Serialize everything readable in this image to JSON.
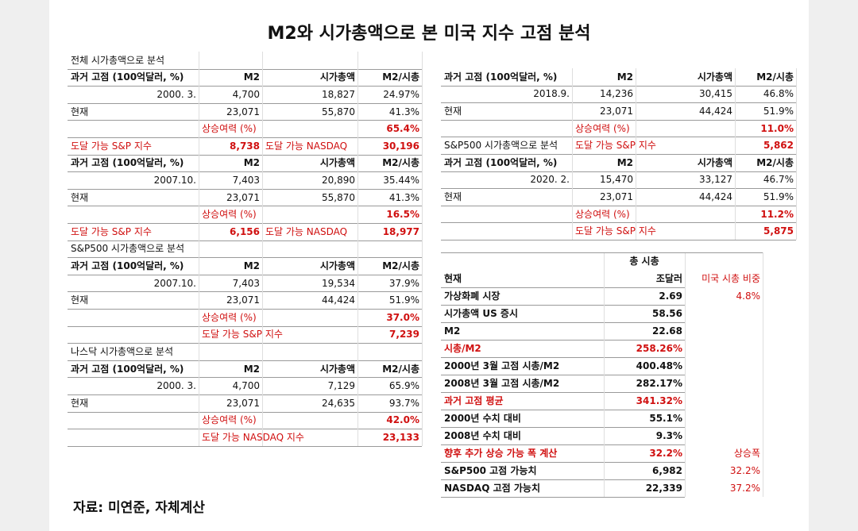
{
  "title": "M2와 시가총액으로 본 미국 지수 고점 분석",
  "source": "자료: 미연준, 자체계산",
  "left": [
    {
      "heading": "전체 시가총액으로 분석",
      "header": [
        "과거 고점 (100억달러, %)",
        "M2",
        "시가총액",
        "M2/시총"
      ],
      "rows": [
        [
          "2000. 3.",
          "4,700",
          "18,827",
          "24.97%"
        ],
        [
          "현재",
          "23,071",
          "55,870",
          "41.3%"
        ],
        [
          null,
          "상승여력 (%)",
          null,
          "65.4%"
        ],
        [
          "도달 가능 S&P 지수",
          "8,738",
          "도달 가능 NASDAQ",
          "30,196"
        ]
      ]
    },
    {
      "header": [
        "과거 고점 (100억달러, %)",
        "M2",
        "시가총액",
        "M2/시총"
      ],
      "rows": [
        [
          "2007.10.",
          "7,403",
          "20,890",
          "35.44%"
        ],
        [
          "현재",
          "23,071",
          "55,870",
          "41.3%"
        ],
        [
          null,
          "상승여력 (%)",
          null,
          "16.5%"
        ],
        [
          "도달 가능 S&P 지수",
          "6,156",
          "도달 가능 NASDAQ",
          "18,977"
        ]
      ]
    },
    {
      "heading": "S&P500 시가총액으로 분석",
      "header": [
        "과거 고점 (100억달러, %)",
        "M2",
        "시가총액",
        "M2/시총"
      ],
      "rows": [
        [
          "2007.10.",
          "7,403",
          "19,534",
          "37.9%"
        ],
        [
          "현재",
          "23,071",
          "44,424",
          "51.9%"
        ],
        [
          null,
          "상승여력 (%)",
          null,
          "37.0%"
        ],
        [
          null,
          "도달 가능 S&P 지수",
          null,
          "7,239"
        ]
      ]
    },
    {
      "heading": "나스닥 시가총액으로 분석",
      "header": [
        "과거 고점 (100억달러, %)",
        "M2",
        "시가총액",
        "M2/시총"
      ],
      "rows": [
        [
          "2000. 3.",
          "4,700",
          "7,129",
          "65.9%"
        ],
        [
          "현재",
          "23,071",
          "24,635",
          "93.7%"
        ],
        [
          null,
          "상승여력 (%)",
          null,
          "42.0%"
        ],
        [
          null,
          "도달 가능 NASDAQ 지수",
          null,
          "23,133"
        ]
      ]
    }
  ],
  "right": [
    {
      "header": [
        "과거 고점 (100억달러, %)",
        "M2",
        "시가총액",
        "M2/시총"
      ],
      "rows": [
        [
          "2018.9.",
          "14,236",
          "30,415",
          "46.8%"
        ],
        [
          "현재",
          "23,071",
          "44,424",
          "51.9%"
        ],
        [
          null,
          "상승여력 (%)",
          null,
          "11.0%"
        ],
        [
          "S&P500 시가총액으로 분석",
          "도달 가능 S&P 지수",
          null,
          "5,862"
        ]
      ]
    },
    {
      "header": [
        "과거 고점 (100억달러, %)",
        "M2",
        "시가총액",
        "M2/시총"
      ],
      "rows": [
        [
          "2020. 2.",
          "15,470",
          "33,127",
          "46.7%"
        ],
        [
          "현재",
          "23,071",
          "44,424",
          "51.9%"
        ],
        [
          null,
          "상승여력 (%)",
          null,
          "11.2%"
        ],
        [
          null,
          "도달 가능 S&P 지수",
          null,
          "5,875"
        ]
      ]
    }
  ],
  "summary": {
    "rows": [
      [
        null,
        "총 시총",
        null
      ],
      [
        "현재",
        "조달러",
        "미국 시총 비중"
      ],
      [
        "가상화폐 시장",
        "2.69",
        "4.8%"
      ],
      [
        "시가총액 US 증시",
        "58.56",
        null
      ],
      [
        "M2",
        "22.68",
        null
      ],
      [
        "시총/M2",
        "258.26%",
        null
      ],
      [
        "2000년 3월 고점 시총/M2",
        "400.48%",
        null
      ],
      [
        "2008년 3월 고점 시총/M2",
        "282.17%",
        null
      ],
      [
        "과거 고점 평균",
        "341.32%",
        null
      ],
      [
        "2000년 수치 대비",
        "55.1%",
        null
      ],
      [
        "2008년 수치 대비",
        "9.3%",
        null
      ],
      [
        "향후 추가 상승 가능 폭 계산",
        "32.2%",
        "상승폭"
      ],
      [
        "S&P500 고점 가능치",
        "6,982",
        "32.2%"
      ],
      [
        "NASDAQ 고점 가능치",
        "22,339",
        "37.2%"
      ]
    ]
  }
}
